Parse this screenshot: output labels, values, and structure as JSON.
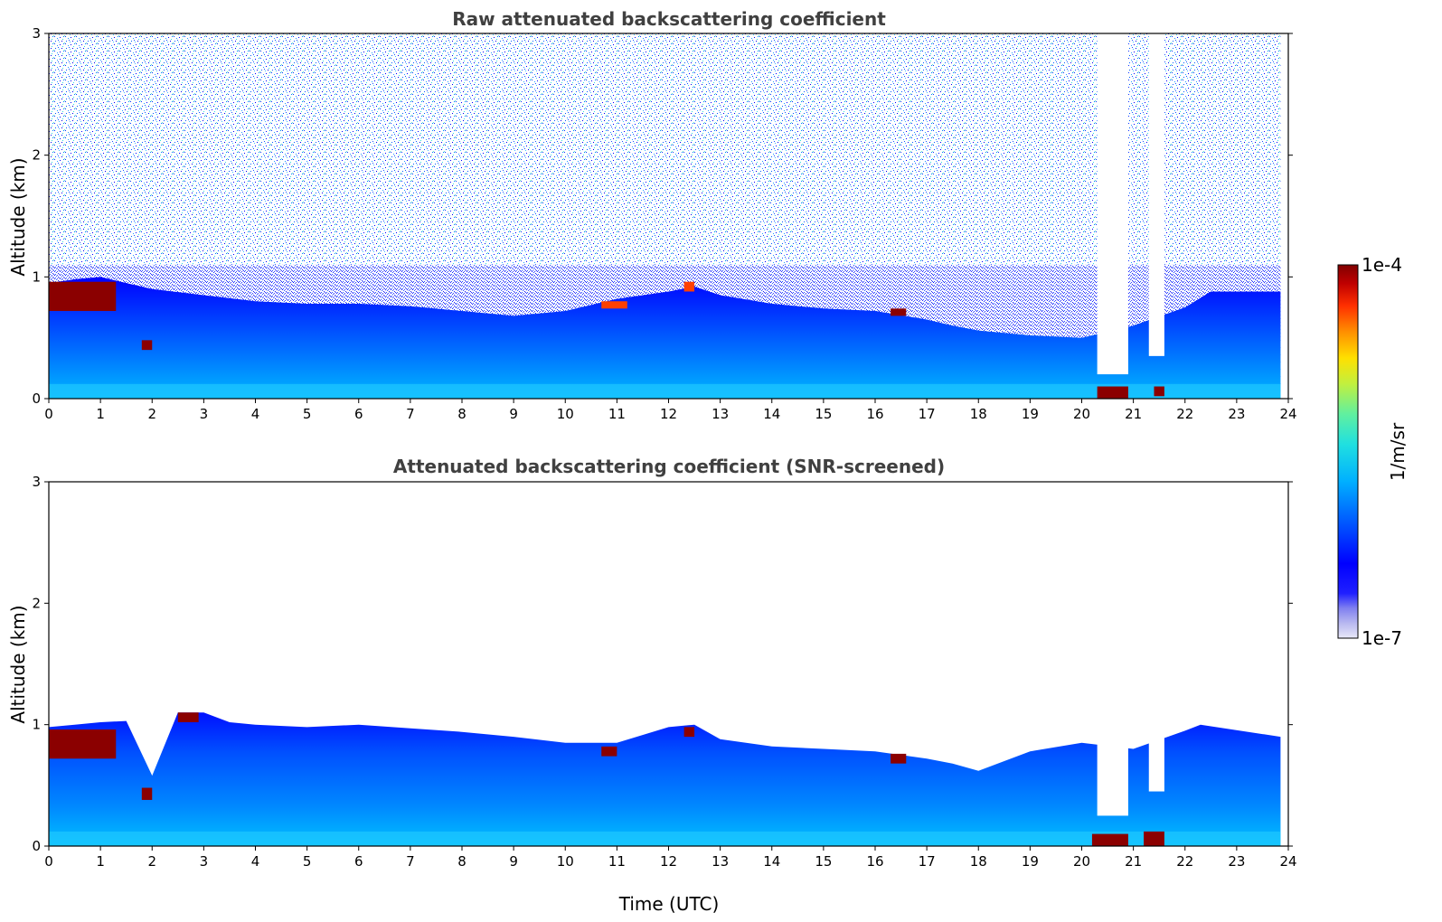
{
  "chart_data": [
    {
      "type": "heatmap",
      "title": "Raw attenuated backscattering coefficient",
      "xlabel": "",
      "ylabel": "Altitude (km)",
      "xlim": [
        0,
        24
      ],
      "ylim": [
        0,
        3
      ],
      "xticks": [
        "0",
        "1",
        "2",
        "3",
        "4",
        "5",
        "6",
        "7",
        "8",
        "9",
        "10",
        "11",
        "12",
        "13",
        "14",
        "15",
        "16",
        "17",
        "18",
        "19",
        "20",
        "21",
        "22",
        "23",
        "24"
      ],
      "yticks": [
        "0",
        "1",
        "2",
        "3"
      ],
      "data_end_time": 23.85,
      "noise_background": true,
      "boundary_layer_top": {
        "time": [
          0,
          0.5,
          1.0,
          1.5,
          2.0,
          3.0,
          4.0,
          5.0,
          6.0,
          7.0,
          8.0,
          9.0,
          10.0,
          11.0,
          12.0,
          12.5,
          13.0,
          14.0,
          15.0,
          16.0,
          17.0,
          17.5,
          18.0,
          19.0,
          20.0,
          21.0,
          22.0,
          22.5,
          23.85
        ],
        "altitude_km": [
          0.95,
          0.98,
          1.0,
          0.95,
          0.9,
          0.85,
          0.8,
          0.78,
          0.78,
          0.76,
          0.72,
          0.68,
          0.72,
          0.82,
          0.88,
          0.92,
          0.85,
          0.78,
          0.74,
          0.72,
          0.65,
          0.6,
          0.56,
          0.52,
          0.5,
          0.6,
          0.75,
          0.88,
          0.88
        ]
      },
      "precipitation_gaps": [
        {
          "start": 20.3,
          "end": 20.9,
          "bottom_km": 0.2
        },
        {
          "start": 21.3,
          "end": 21.6,
          "bottom_km": 0.35
        }
      ],
      "strong_returns": [
        {
          "t0": 0.0,
          "t1": 1.3,
          "z0": 0.72,
          "z1": 0.96,
          "level": "max"
        },
        {
          "t0": 1.8,
          "t1": 2.0,
          "z0": 0.4,
          "z1": 0.48,
          "level": "max"
        },
        {
          "t0": 20.3,
          "t1": 20.9,
          "z0": 0.0,
          "z1": 0.1,
          "level": "max"
        },
        {
          "t0": 21.4,
          "t1": 21.6,
          "z0": 0.02,
          "z1": 0.1,
          "level": "max"
        },
        {
          "t0": 16.3,
          "t1": 16.6,
          "z0": 0.68,
          "z1": 0.74,
          "level": "max"
        },
        {
          "t0": 10.7,
          "t1": 11.2,
          "z0": 0.74,
          "z1": 0.8,
          "level": "high"
        },
        {
          "t0": 12.3,
          "t1": 12.5,
          "z0": 0.88,
          "z1": 0.96,
          "level": "high"
        }
      ]
    },
    {
      "type": "heatmap",
      "title": "Attenuated backscattering coefficient (SNR-screened)",
      "xlabel": "Time (UTC)",
      "ylabel": "Altitude (km)",
      "xlim": [
        0,
        24
      ],
      "ylim": [
        0,
        3
      ],
      "xticks": [
        "0",
        "1",
        "2",
        "3",
        "4",
        "5",
        "6",
        "7",
        "8",
        "9",
        "10",
        "11",
        "12",
        "13",
        "14",
        "15",
        "16",
        "17",
        "18",
        "19",
        "20",
        "21",
        "22",
        "23",
        "24"
      ],
      "yticks": [
        "0",
        "1",
        "2",
        "3"
      ],
      "data_end_time": 23.85,
      "noise_background": false,
      "boundary_layer_top": {
        "time": [
          0,
          0.5,
          1.0,
          1.5,
          2.0,
          2.5,
          3.0,
          3.5,
          4.0,
          5.0,
          6.0,
          7.0,
          8.0,
          9.0,
          10.0,
          11.0,
          12.0,
          12.5,
          13.0,
          14.0,
          15.0,
          16.0,
          17.0,
          17.5,
          18.0,
          19.0,
          20.0,
          21.0,
          22.0,
          22.3,
          23.85
        ],
        "altitude_km": [
          0.98,
          1.0,
          1.02,
          1.03,
          0.58,
          1.1,
          1.1,
          1.02,
          1.0,
          0.98,
          1.0,
          0.97,
          0.94,
          0.9,
          0.85,
          0.85,
          0.98,
          1.0,
          0.88,
          0.82,
          0.8,
          0.78,
          0.72,
          0.68,
          0.62,
          0.78,
          0.85,
          0.8,
          0.95,
          1.0,
          0.9
        ]
      },
      "precipitation_gaps": [
        {
          "start": 20.3,
          "end": 20.9,
          "bottom_km": 0.25
        },
        {
          "start": 21.3,
          "end": 21.6,
          "bottom_km": 0.45
        }
      ],
      "strong_returns": [
        {
          "t0": 0.0,
          "t1": 1.3,
          "z0": 0.72,
          "z1": 0.96,
          "level": "max"
        },
        {
          "t0": 1.8,
          "t1": 2.0,
          "z0": 0.38,
          "z1": 0.48,
          "level": "max"
        },
        {
          "t0": 2.5,
          "t1": 2.9,
          "z0": 1.02,
          "z1": 1.1,
          "level": "max"
        },
        {
          "t0": 20.2,
          "t1": 20.9,
          "z0": 0.0,
          "z1": 0.1,
          "level": "max"
        },
        {
          "t0": 21.2,
          "t1": 21.6,
          "z0": 0.0,
          "z1": 0.12,
          "level": "max"
        },
        {
          "t0": 16.3,
          "t1": 16.6,
          "z0": 0.68,
          "z1": 0.76,
          "level": "max"
        },
        {
          "t0": 10.7,
          "t1": 11.0,
          "z0": 0.74,
          "z1": 0.82,
          "level": "max"
        },
        {
          "t0": 12.3,
          "t1": 12.5,
          "z0": 0.9,
          "z1": 0.98,
          "level": "max"
        }
      ]
    }
  ],
  "colorbar": {
    "label": "1/m/sr",
    "max_label": "1e-4",
    "min_label": "1e-7",
    "scale": "log",
    "colormap": "jet",
    "colors": [
      "#e8e8f8",
      "#b8b8f0",
      "#8080f0",
      "#2020ff",
      "#0000ff",
      "#0060ff",
      "#00b0ff",
      "#20e0e0",
      "#60f0a0",
      "#c0f040",
      "#ffe000",
      "#ff9000",
      "#ff3000",
      "#c00000",
      "#800000"
    ]
  }
}
